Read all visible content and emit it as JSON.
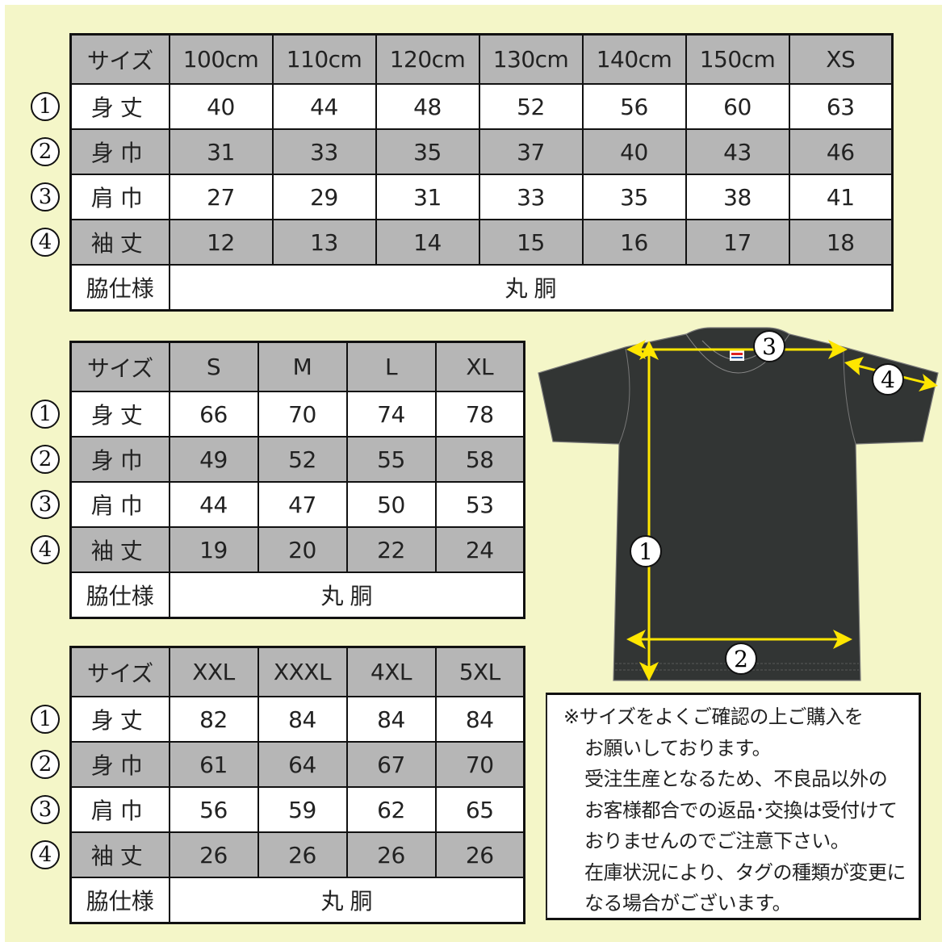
{
  "tables": [
    {
      "header": [
        "サイズ",
        "100cm",
        "110cm",
        "120cm",
        "130cm",
        "140cm",
        "150cm",
        "XS"
      ],
      "rows": [
        {
          "num": "1",
          "label": "身丈",
          "values": [
            "40",
            "44",
            "48",
            "52",
            "56",
            "60",
            "63"
          ]
        },
        {
          "num": "2",
          "label": "身巾",
          "values": [
            "31",
            "33",
            "35",
            "37",
            "40",
            "43",
            "46"
          ]
        },
        {
          "num": "3",
          "label": "肩巾",
          "values": [
            "27",
            "29",
            "31",
            "33",
            "35",
            "38",
            "41"
          ]
        },
        {
          "num": "4",
          "label": "袖丈",
          "values": [
            "12",
            "13",
            "14",
            "15",
            "16",
            "17",
            "18"
          ]
        }
      ],
      "side_label": "脇仕様",
      "side_value": "丸 胴"
    },
    {
      "header": [
        "サイズ",
        "S",
        "M",
        "L",
        "XL"
      ],
      "rows": [
        {
          "num": "1",
          "label": "身丈",
          "values": [
            "66",
            "70",
            "74",
            "78"
          ]
        },
        {
          "num": "2",
          "label": "身巾",
          "values": [
            "49",
            "52",
            "55",
            "58"
          ]
        },
        {
          "num": "3",
          "label": "肩巾",
          "values": [
            "44",
            "47",
            "50",
            "53"
          ]
        },
        {
          "num": "4",
          "label": "袖丈",
          "values": [
            "19",
            "20",
            "22",
            "24"
          ]
        }
      ],
      "side_label": "脇仕様",
      "side_value": "丸 胴"
    },
    {
      "header": [
        "サイズ",
        "XXL",
        "XXXL",
        "4XL",
        "5XL"
      ],
      "rows": [
        {
          "num": "1",
          "label": "身丈",
          "values": [
            "82",
            "84",
            "84",
            "84"
          ]
        },
        {
          "num": "2",
          "label": "身巾",
          "values": [
            "61",
            "64",
            "67",
            "70"
          ]
        },
        {
          "num": "3",
          "label": "肩巾",
          "values": [
            "56",
            "59",
            "62",
            "65"
          ]
        },
        {
          "num": "4",
          "label": "袖丈",
          "values": [
            "26",
            "26",
            "26",
            "26"
          ]
        }
      ],
      "side_label": "脇仕様",
      "side_value": "丸 胴"
    }
  ],
  "diagram": {
    "markers": [
      "3",
      "4",
      "1",
      "2"
    ],
    "shirt_color": "#323534",
    "arrow_color": "#ffe600"
  },
  "note_lines": [
    "※サイズをよくご確認の上ご購入を",
    "お願いしております。",
    "受注生産となるため、不良品以外の",
    "お客様都合での返品･交換は受付けて",
    "おりませんのでご注意下さい。",
    "在庫状況により、タグの種類が変更に",
    "なる場合がございます。"
  ],
  "colors": {
    "background": "#f4f6c8",
    "row_gray": "#b6b6b6"
  }
}
